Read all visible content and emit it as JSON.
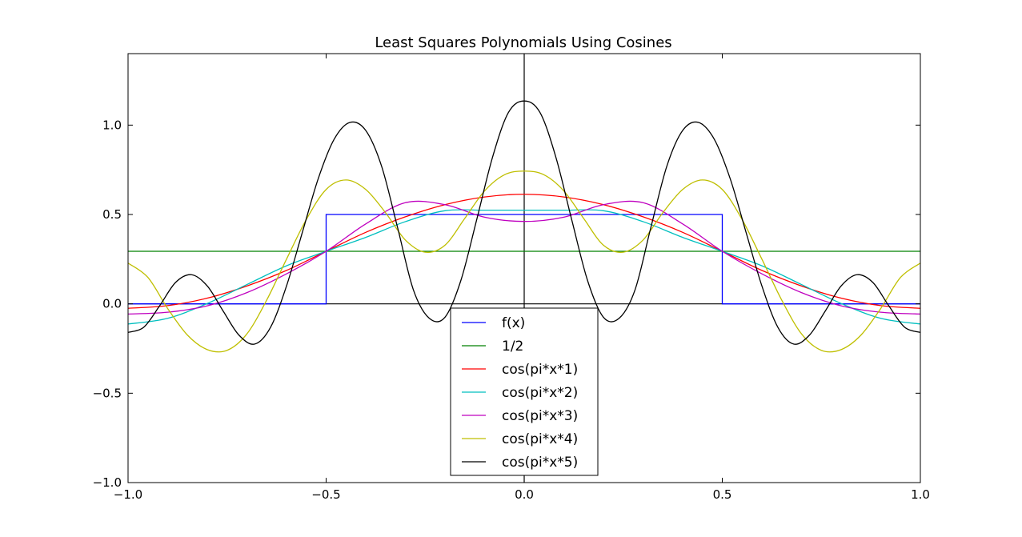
{
  "chart_data": {
    "type": "line",
    "title": "Least Squares Polynomials Using Cosines",
    "xlabel": "",
    "ylabel": "",
    "xlim": [
      -1.0,
      1.0
    ],
    "ylim": [
      -1.0,
      1.4
    ],
    "xticks": [
      -1.0,
      -0.5,
      0.0,
      0.5,
      1.0
    ],
    "xtick_labels": [
      "−1.0",
      "−0.5",
      "0.0",
      "0.5",
      "1.0"
    ],
    "yticks": [
      -1.0,
      -0.5,
      0.0,
      0.5,
      1.0
    ],
    "ytick_labels": [
      "−1.0",
      "−0.5",
      "0.0",
      "0.5",
      "1.0"
    ],
    "grid": false,
    "axis_lines_at_zero": true,
    "legend_position": "bottom-center",
    "series": [
      {
        "name": "f(x)",
        "color": "#0000ff",
        "x": [
          -1.0,
          -0.5,
          -0.5,
          0.5,
          0.5,
          1.0
        ],
        "y": [
          0.0,
          0.0,
          0.5,
          0.5,
          0.0,
          0.0
        ]
      },
      {
        "name": "1/2",
        "color": "#008000",
        "x": [
          -1.0,
          1.0
        ],
        "y": [
          0.294,
          0.294
        ]
      },
      {
        "name": "cos(pi*x*1)",
        "color": "#ff0000",
        "x": [
          -1.0,
          -0.9,
          -0.8,
          -0.7,
          -0.6,
          -0.5,
          -0.4,
          -0.3,
          -0.2,
          -0.1,
          0.0,
          0.1,
          0.2,
          0.3,
          0.4,
          0.5,
          0.6,
          0.7,
          0.8,
          0.9,
          1.0
        ],
        "y": [
          -0.025,
          -0.01,
          0.032,
          0.1,
          0.187,
          0.294,
          0.4,
          0.487,
          0.555,
          0.598,
          0.613,
          0.598,
          0.555,
          0.487,
          0.4,
          0.294,
          0.187,
          0.1,
          0.032,
          -0.01,
          -0.025
        ]
      },
      {
        "name": "cos(pi*x*2)",
        "color": "#00bfbf",
        "x": [
          -1.0,
          -0.9,
          -0.8,
          -0.7,
          -0.6,
          -0.5,
          -0.4,
          -0.3,
          -0.2,
          -0.1,
          0.0,
          0.1,
          0.2,
          0.3,
          0.4,
          0.5,
          0.6,
          0.7,
          0.8,
          0.9,
          1.0
        ],
        "y": [
          -0.113,
          -0.081,
          0.002,
          0.108,
          0.213,
          0.294,
          0.372,
          0.46,
          0.521,
          0.524,
          0.524,
          0.524,
          0.521,
          0.46,
          0.372,
          0.294,
          0.213,
          0.108,
          0.002,
          -0.081,
          -0.113
        ]
      },
      {
        "name": "cos(pi*x*3)",
        "color": "#bf00bf",
        "x": [
          -1.0,
          -0.9,
          -0.8,
          -0.7,
          -0.6,
          -0.5,
          -0.4,
          -0.3,
          -0.2,
          -0.1,
          0.0,
          0.1,
          0.2,
          0.3,
          0.4,
          0.5,
          0.6,
          0.7,
          0.8,
          0.9,
          1.0
        ],
        "y": [
          -0.057,
          -0.047,
          -0.011,
          0.063,
          0.168,
          0.294,
          0.447,
          0.566,
          0.555,
          0.485,
          0.461,
          0.485,
          0.555,
          0.566,
          0.447,
          0.294,
          0.168,
          0.063,
          -0.011,
          -0.047,
          -0.057
        ]
      },
      {
        "name": "cos(pi*x*4)",
        "color": "#bfbf00",
        "x": [
          -1.0,
          -0.95,
          -0.9,
          -0.85,
          -0.8,
          -0.75,
          -0.7,
          -0.65,
          -0.6,
          -0.55,
          -0.5,
          -0.45,
          -0.4,
          -0.35,
          -0.3,
          -0.25,
          -0.2,
          -0.15,
          -0.1,
          -0.05,
          0.0,
          0.05,
          0.1,
          0.15,
          0.2,
          0.25,
          0.3,
          0.35,
          0.4,
          0.45,
          0.5,
          0.55,
          0.6,
          0.65,
          0.7,
          0.75,
          0.8,
          0.85,
          0.9,
          0.95,
          1.0
        ],
        "y": [
          0.228,
          0.148,
          -0.026,
          -0.175,
          -0.256,
          -0.26,
          -0.168,
          0.021,
          0.25,
          0.472,
          0.64,
          0.693,
          0.64,
          0.51,
          0.357,
          0.289,
          0.328,
          0.478,
          0.632,
          0.722,
          0.743,
          0.722,
          0.632,
          0.478,
          0.328,
          0.289,
          0.357,
          0.51,
          0.64,
          0.693,
          0.64,
          0.472,
          0.25,
          0.021,
          -0.168,
          -0.26,
          -0.256,
          -0.175,
          -0.026,
          0.148,
          0.228
        ]
      },
      {
        "name": "cos(pi*x*5)",
        "color": "#000000",
        "x": [
          -1.0,
          -0.96,
          -0.92,
          -0.88,
          -0.84,
          -0.8,
          -0.76,
          -0.72,
          -0.68,
          -0.64,
          -0.6,
          -0.56,
          -0.52,
          -0.48,
          -0.44,
          -0.4,
          -0.36,
          -0.32,
          -0.28,
          -0.24,
          -0.2,
          -0.16,
          -0.12,
          -0.08,
          -0.04,
          0.0,
          0.04,
          0.08,
          0.12,
          0.16,
          0.2,
          0.24,
          0.28,
          0.32,
          0.36,
          0.4,
          0.44,
          0.48,
          0.52,
          0.56,
          0.6,
          0.64,
          0.68,
          0.72,
          0.76,
          0.8,
          0.84,
          0.88,
          0.92,
          0.96,
          1.0
        ],
        "y": [
          -0.16,
          -0.13,
          -0.01,
          0.12,
          0.163,
          0.1,
          -0.04,
          -0.175,
          -0.225,
          -0.13,
          0.1,
          0.4,
          0.7,
          0.92,
          1.015,
          0.97,
          0.77,
          0.43,
          0.08,
          -0.08,
          -0.075,
          0.13,
          0.47,
          0.82,
          1.07,
          1.135,
          1.07,
          0.82,
          0.47,
          0.13,
          -0.075,
          -0.08,
          0.08,
          0.43,
          0.77,
          0.97,
          1.015,
          0.92,
          0.7,
          0.4,
          0.1,
          -0.13,
          -0.225,
          -0.175,
          -0.04,
          0.1,
          0.163,
          0.12,
          -0.01,
          -0.13,
          -0.16
        ]
      }
    ]
  }
}
